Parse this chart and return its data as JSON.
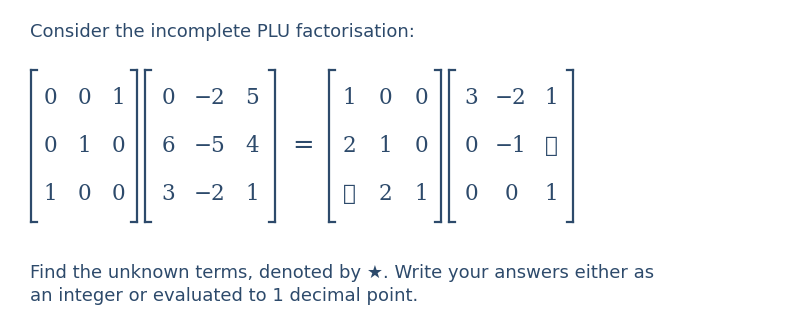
{
  "title_text": "Consider the incomplete PLU factorisation:",
  "footer_line1": "Find the unknown terms, denoted by ★. Write your answers either as",
  "footer_line2": "an integer or evaluated to 1 decimal point.",
  "text_color": "#2d4a6b",
  "bg_color": "#ffffff",
  "title_fontsize": 13.0,
  "matrix_fontsize": 15.5,
  "footer_fontsize": 13.0,
  "P_matrix": [
    [
      "0",
      "0",
      "1"
    ],
    [
      "0",
      "1",
      "0"
    ],
    [
      "1",
      "0",
      "0"
    ]
  ],
  "A_matrix": [
    [
      "0",
      "−2",
      "5"
    ],
    [
      "6",
      "−5",
      "4"
    ],
    [
      "3",
      "−2",
      "1"
    ]
  ],
  "L_matrix": [
    [
      "1",
      "0",
      "0"
    ],
    [
      "2",
      "1",
      "0"
    ],
    [
      "★",
      "2",
      "1"
    ]
  ],
  "U_matrix": [
    [
      "3",
      "−2",
      "1"
    ],
    [
      "0",
      "−1",
      "★"
    ],
    [
      "0",
      "0",
      "1"
    ]
  ]
}
